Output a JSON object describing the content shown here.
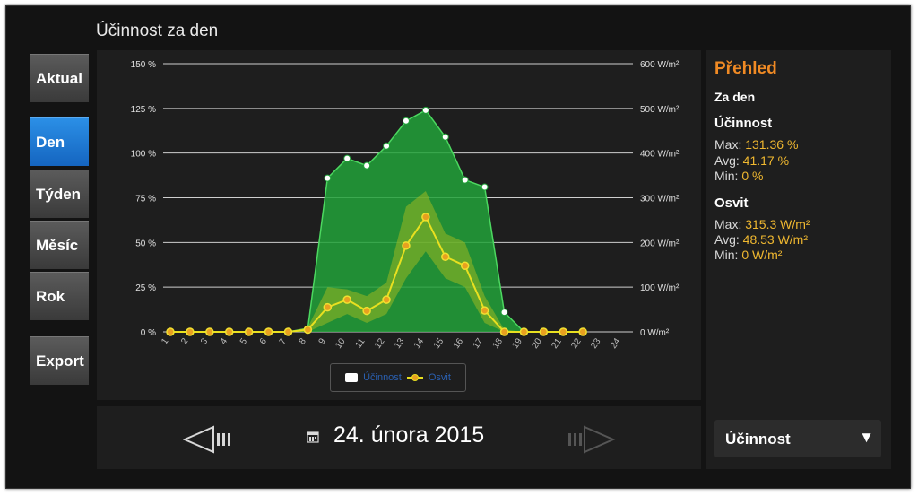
{
  "page_title": "Účinnost za den",
  "nav": [
    {
      "label": "Aktual",
      "active": false
    },
    {
      "label": "Den",
      "active": true
    },
    {
      "label": "Týden",
      "active": false
    },
    {
      "label": "Měsíc",
      "active": false
    },
    {
      "label": "Rok",
      "active": false
    },
    {
      "label": "Export",
      "active": false
    }
  ],
  "date_bar": {
    "date": "24. února 2015",
    "calendar_icon": "calendar-icon",
    "prev_icon": "arrow-left-icon",
    "next_icon": "arrow-right-icon"
  },
  "overview": {
    "title": "Přehled",
    "period": "Za den",
    "efficiency": {
      "heading": "Účinnost",
      "max_label": "Max:",
      "max_value": "131.36  %",
      "avg_label": "Avg:",
      "avg_value": "41.17  %",
      "min_label": "Min:",
      "min_value": "0  %"
    },
    "irradiance": {
      "heading": "Osvit",
      "max_label": "Max:",
      "max_value": "315.3  W/m²",
      "avg_label": "Avg:",
      "avg_value": "48.53  W/m²",
      "min_label": "Min:",
      "min_value": "0  W/m²"
    }
  },
  "dropdown": {
    "selected": "Účinnost"
  },
  "legend": {
    "efficiency": "Účinnost",
    "irradiance": "Osvit"
  },
  "colors": {
    "efficiency_fill": "#22a23a",
    "irradiance_line": "#e8e020",
    "accent_orange": "#f08a24",
    "active_nav": "#1e7ad8"
  },
  "chart_data": {
    "type": "area",
    "x": [
      1,
      2,
      3,
      4,
      5,
      6,
      7,
      8,
      9,
      10,
      11,
      12,
      13,
      14,
      15,
      16,
      17,
      18,
      19,
      20,
      21,
      22,
      23,
      24
    ],
    "y_left": {
      "ticks": [
        "0 %",
        "25 %",
        "50 %",
        "75 %",
        "100 %",
        "125 %",
        "150 %"
      ],
      "range": [
        0,
        150
      ]
    },
    "y_right": {
      "ticks": [
        "0 W/m²",
        "100 W/m²",
        "200 W/m²",
        "300 W/m²",
        "400 W/m²",
        "500 W/m²",
        "600 W/m²"
      ],
      "range": [
        0,
        600
      ]
    },
    "series": [
      {
        "name": "Účinnost",
        "axis": "left",
        "values": [
          0,
          0,
          0,
          0,
          0,
          0,
          0,
          2,
          86,
          97,
          93,
          104,
          118,
          124,
          109,
          85,
          81,
          11,
          0,
          0,
          0,
          0,
          null,
          null
        ]
      },
      {
        "name": "Osvit",
        "axis": "right",
        "values": [
          0,
          0,
          0,
          0,
          0,
          0,
          0,
          5,
          55,
          72,
          47,
          72,
          193,
          257,
          168,
          148,
          48,
          0,
          0,
          0,
          0,
          0,
          null,
          null
        ]
      }
    ],
    "irradiance_band": {
      "upper": [
        0,
        0,
        0,
        0,
        0,
        0,
        0,
        10,
        100,
        95,
        80,
        110,
        280,
        315,
        220,
        200,
        80,
        5,
        0,
        0,
        0,
        0,
        null,
        null
      ],
      "lower": [
        0,
        0,
        0,
        0,
        0,
        0,
        0,
        0,
        20,
        40,
        20,
        40,
        120,
        180,
        120,
        100,
        20,
        0,
        0,
        0,
        0,
        0,
        null,
        null
      ]
    },
    "grid": true,
    "legend_position": "bottom-center"
  }
}
